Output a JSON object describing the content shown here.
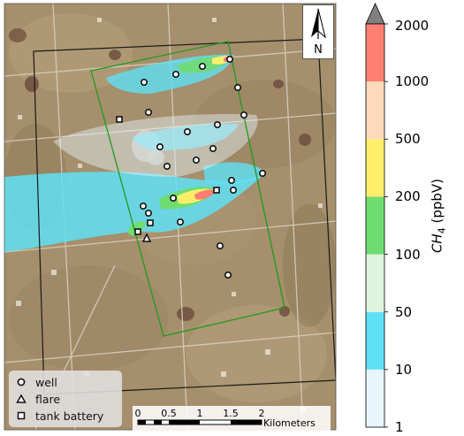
{
  "north_arrow": {
    "label": "N"
  },
  "legend": {
    "items": [
      {
        "label": "well",
        "symbol": "circle"
      },
      {
        "label": "flare",
        "symbol": "triangle"
      },
      {
        "label": "tank battery",
        "symbol": "square"
      }
    ]
  },
  "scale_bar": {
    "ticks": [
      "0",
      "0.5",
      "1",
      "1.5",
      "2"
    ],
    "unit": "Kilometers"
  },
  "colorbar": {
    "title_main": "CH",
    "title_sub": "4",
    "title_unit": "(ppbV)",
    "ticks": [
      "1",
      "10",
      "50",
      "100",
      "200",
      "500",
      "1000",
      "2000"
    ],
    "bins": [
      {
        "from": "1",
        "to": "10",
        "color": "#e6f6fc"
      },
      {
        "from": "10",
        "to": "50",
        "color": "#5fe0f5"
      },
      {
        "from": "50",
        "to": "100",
        "color": "#dff4dc"
      },
      {
        "from": "100",
        "to": "200",
        "color": "#6fdc72"
      },
      {
        "from": "200",
        "to": "500",
        "color": "#ffee6a"
      },
      {
        "from": "500",
        "to": "1000",
        "color": "#ffd9bc"
      },
      {
        "from": "1000",
        "to": "2000",
        "color": "#ff7f72"
      }
    ],
    "extend_color": "#808080"
  },
  "colors": {
    "flight_box": "#1a1a1a",
    "survey_box": "#1e9a1e",
    "plume_low": "#5fe0f5",
    "plume_mid": "#6fdc72",
    "plume_yellow": "#ffee6a",
    "plume_high": "#ff7f72"
  }
}
